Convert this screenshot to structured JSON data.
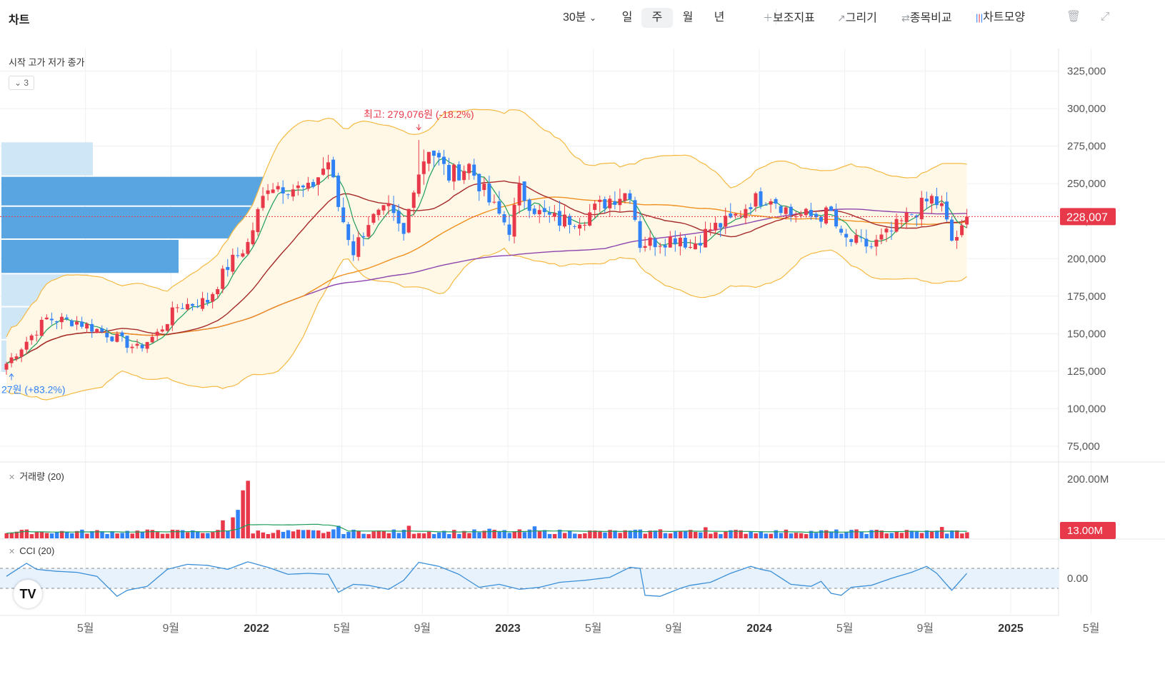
{
  "header": {
    "title": "차트",
    "intervals": [
      {
        "label": "30분",
        "active": false
      },
      {
        "label": "일",
        "active": false
      },
      {
        "label": "주",
        "active": true
      },
      {
        "label": "월",
        "active": false
      },
      {
        "label": "년",
        "active": false
      }
    ],
    "tools": [
      {
        "icon": "plus-icon",
        "label": "보조지표"
      },
      {
        "icon": "pencil-icon",
        "label": "그리기"
      },
      {
        "icon": "compare-icon",
        "label": "종목비교"
      },
      {
        "icon": "candles-icon",
        "label": "차트모양"
      }
    ],
    "right_icons": [
      "trash-icon",
      "expand-icon"
    ]
  },
  "price_pane": {
    "legend_label": "시작 고가 저가 종가",
    "collapse_count": "3",
    "current_price_label": "228,007",
    "high_annotation": "최고: 279,076원 (-18.2%)",
    "low_annotation": "27원 (+83.2%)",
    "colors": {
      "up": "#e8394a",
      "down": "#3182f6",
      "ma5": "#1f9e5a",
      "ma20": "#a52a2a",
      "ma60": "#f0901e",
      "ma120": "#8e44ad",
      "band": "#f5b942"
    }
  },
  "volume_pane": {
    "label": "거래량 (20)",
    "current_label": "13.00M"
  },
  "cci_pane": {
    "label": "CCI (20)"
  },
  "chart_data": {
    "type": "candlestick",
    "x_tick_labels": [
      "5월",
      "9월",
      "2022",
      "5월",
      "9월",
      "2023",
      "5월",
      "9월",
      "2024",
      "5월",
      "9월",
      "2025",
      "5월"
    ],
    "price_axis": {
      "ticks": [
        "325,000",
        "300,000",
        "275,000",
        "250,000",
        "225,000",
        "200,000",
        "175,000",
        "150,000",
        "125,000",
        "100,000",
        "75,000"
      ],
      "range": [
        65000,
        340000
      ],
      "current": 228007
    },
    "volume_axis": {
      "ticks": [
        "200.00M"
      ],
      "current": "13.00M"
    },
    "cci_axis": {
      "ticks": [
        "0.00"
      ],
      "levels": [
        100,
        -100
      ]
    },
    "max_point": {
      "value": 279076,
      "week_index": 82
    },
    "min_point": {
      "week_index": 1
    },
    "price_waypoints": [
      [
        0,
        130000
      ],
      [
        4,
        145000
      ],
      [
        8,
        160000
      ],
      [
        14,
        158000
      ],
      [
        20,
        150000
      ],
      [
        26,
        140000
      ],
      [
        30,
        150000
      ],
      [
        34,
        168000
      ],
      [
        40,
        172000
      ],
      [
        44,
        195000
      ],
      [
        48,
        210000
      ],
      [
        52,
        250000
      ],
      [
        56,
        248000
      ],
      [
        60,
        245000
      ],
      [
        64,
        265000
      ],
      [
        66,
        235000
      ],
      [
        69,
        205000
      ],
      [
        72,
        225000
      ],
      [
        76,
        232000
      ],
      [
        79,
        215000
      ],
      [
        81,
        250000
      ],
      [
        84,
        275000
      ],
      [
        88,
        255000
      ],
      [
        92,
        262000
      ],
      [
        96,
        238000
      ],
      [
        100,
        220000
      ],
      [
        102,
        245000
      ],
      [
        106,
        230000
      ],
      [
        110,
        225000
      ],
      [
        115,
        228000
      ],
      [
        120,
        240000
      ],
      [
        124,
        245000
      ],
      [
        126,
        210000
      ],
      [
        130,
        212000
      ],
      [
        134,
        215000
      ],
      [
        136,
        208000
      ],
      [
        140,
        220000
      ],
      [
        144,
        225000
      ],
      [
        148,
        238000
      ],
      [
        152,
        242000
      ],
      [
        156,
        230000
      ],
      [
        160,
        228000
      ],
      [
        164,
        230000
      ],
      [
        166,
        213000
      ],
      [
        170,
        210000
      ],
      [
        172,
        208000
      ],
      [
        176,
        218000
      ],
      [
        180,
        230000
      ],
      [
        184,
        240000
      ],
      [
        186,
        234000
      ],
      [
        188,
        212000
      ],
      [
        190,
        218000
      ],
      [
        191,
        228007
      ]
    ],
    "volume_spikes": [
      [
        47,
        160000000
      ],
      [
        48,
        192000000
      ],
      [
        46,
        95000000
      ],
      [
        45,
        70000000
      ],
      [
        43,
        60000000
      ],
      [
        66,
        42000000
      ],
      [
        80,
        42000000
      ],
      [
        105,
        40000000
      ],
      [
        139,
        37000000
      ],
      [
        186,
        38000000
      ],
      [
        96,
        32000000
      ],
      [
        130,
        30000000
      ]
    ],
    "cci_waypoints": [
      [
        0,
        20
      ],
      [
        4,
        150
      ],
      [
        6,
        90
      ],
      [
        10,
        70
      ],
      [
        14,
        60
      ],
      [
        18,
        20
      ],
      [
        22,
        -180
      ],
      [
        24,
        -120
      ],
      [
        28,
        -80
      ],
      [
        32,
        90
      ],
      [
        36,
        140
      ],
      [
        40,
        130
      ],
      [
        44,
        90
      ],
      [
        48,
        165
      ],
      [
        52,
        110
      ],
      [
        56,
        40
      ],
      [
        60,
        50
      ],
      [
        64,
        40
      ],
      [
        66,
        -140
      ],
      [
        69,
        -60
      ],
      [
        72,
        -70
      ],
      [
        76,
        -110
      ],
      [
        79,
        -20
      ],
      [
        82,
        160
      ],
      [
        86,
        120
      ],
      [
        90,
        40
      ],
      [
        94,
        -90
      ],
      [
        98,
        -60
      ],
      [
        102,
        -110
      ],
      [
        106,
        -90
      ],
      [
        110,
        -40
      ],
      [
        115,
        -20
      ],
      [
        120,
        10
      ],
      [
        124,
        110
      ],
      [
        126,
        100
      ],
      [
        127,
        -170
      ],
      [
        130,
        -180
      ],
      [
        134,
        -100
      ],
      [
        136,
        -70
      ],
      [
        140,
        -40
      ],
      [
        144,
        50
      ],
      [
        148,
        120
      ],
      [
        150,
        90
      ],
      [
        152,
        70
      ],
      [
        156,
        -60
      ],
      [
        160,
        -80
      ],
      [
        162,
        -30
      ],
      [
        164,
        -150
      ],
      [
        166,
        -170
      ],
      [
        168,
        -90
      ],
      [
        172,
        -70
      ],
      [
        176,
        0
      ],
      [
        180,
        60
      ],
      [
        183,
        120
      ],
      [
        185,
        50
      ],
      [
        188,
        -120
      ],
      [
        191,
        50
      ]
    ]
  }
}
